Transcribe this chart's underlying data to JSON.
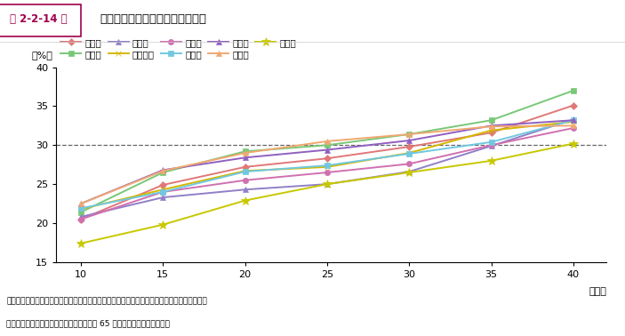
{
  "title": "人口増加都府県の高齢比率の推移",
  "fig_label": "第 2-2-14 図",
  "xlabel": "（年）",
  "ylabel": "（%）",
  "x": [
    10,
    15,
    20,
    25,
    30,
    35,
    40
  ],
  "series": [
    {
      "name": "埼玉県",
      "color": "#e07878",
      "marker": "D",
      "values": [
        20.5,
        24.9,
        27.2,
        28.3,
        29.8,
        31.6,
        35.1
      ]
    },
    {
      "name": "千葉県",
      "color": "#78c878",
      "marker": "s",
      "values": [
        21.4,
        26.5,
        29.2,
        30.0,
        31.4,
        33.2,
        37.0
      ]
    },
    {
      "name": "東京都",
      "color": "#9080c8",
      "marker": "^",
      "values": [
        20.8,
        23.3,
        24.3,
        25.0,
        26.6,
        29.9,
        33.3
      ]
    },
    {
      "name": "神奈川県",
      "color": "#d4b800",
      "marker": "x",
      "values": [
        21.8,
        24.3,
        26.7,
        27.2,
        29.0,
        31.9,
        33.0
      ]
    },
    {
      "name": "愛知県",
      "color": "#d070b0",
      "marker": "o",
      "values": [
        20.5,
        24.0,
        25.5,
        26.5,
        27.6,
        30.0,
        32.2
      ]
    },
    {
      "name": "滋賀県",
      "color": "#70c8e0",
      "marker": "s",
      "values": [
        21.9,
        24.0,
        26.6,
        27.4,
        28.9,
        30.4,
        33.2
      ]
    },
    {
      "name": "大阪府",
      "color": "#9060c0",
      "marker": "^",
      "values": [
        22.5,
        26.8,
        28.4,
        29.4,
        30.6,
        32.5,
        33.2
      ]
    },
    {
      "name": "福岡県",
      "color": "#f0a870",
      "marker": "^",
      "values": [
        22.5,
        26.7,
        29.0,
        30.5,
        31.4,
        32.4,
        32.5
      ]
    },
    {
      "name": "沖縄県",
      "color": "#c8c800",
      "marker": "*",
      "values": [
        17.4,
        19.8,
        22.9,
        25.0,
        26.5,
        28.0,
        30.2
      ]
    }
  ],
  "ylim": [
    15,
    40
  ],
  "yticks": [
    15,
    20,
    25,
    30,
    35,
    40
  ],
  "xticks": [
    10,
    15,
    20,
    25,
    30,
    35,
    40
  ],
  "hline_y": 30,
  "bg_color": "#ffffff",
  "header_label_color": "#a0004a",
  "source_text": "資料：国立社会保障・人口問題研究所「日本の地域別将来推計人口（出生中位・死亡中位）」",
  "note_text": "（注）「高齢比率」とは、総人口に占める 65 歳以上人口の割合をいう。"
}
